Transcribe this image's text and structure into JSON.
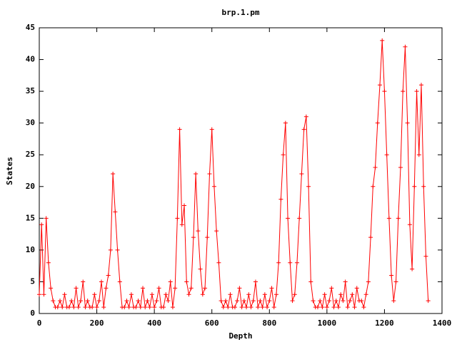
{
  "chart_data": {
    "type": "line",
    "title": "brp.1.pm",
    "x_label": "Depth",
    "y_label": "States",
    "x": [
      0,
      8,
      16,
      24,
      32,
      40,
      48,
      56,
      64,
      72,
      80,
      88,
      96,
      104,
      112,
      120,
      128,
      136,
      144,
      152,
      160,
      168,
      176,
      184,
      192,
      200,
      208,
      216,
      224,
      232,
      240,
      248,
      256,
      264,
      272,
      280,
      288,
      296,
      304,
      312,
      320,
      328,
      336,
      344,
      352,
      360,
      368,
      376,
      384,
      392,
      400,
      408,
      416,
      424,
      432,
      440,
      448,
      456,
      464,
      472,
      480,
      488,
      496,
      504,
      512,
      520,
      528,
      536,
      544,
      552,
      560,
      568,
      576,
      584,
      592,
      600,
      608,
      616,
      624,
      632,
      640,
      648,
      656,
      664,
      672,
      680,
      688,
      696,
      704,
      712,
      720,
      728,
      736,
      744,
      752,
      760,
      768,
      776,
      784,
      792,
      800,
      808,
      816,
      824,
      832,
      840,
      848,
      856,
      864,
      872,
      880,
      888,
      896,
      904,
      912,
      920,
      928,
      936,
      944,
      952,
      960,
      968,
      976,
      984,
      992,
      1000,
      1008,
      1016,
      1024,
      1032,
      1040,
      1048,
      1056,
      1064,
      1072,
      1080,
      1088,
      1096,
      1104,
      1112,
      1120,
      1128,
      1136,
      1144,
      1152,
      1160,
      1168,
      1176,
      1184,
      1192,
      1200,
      1208,
      1216,
      1224,
      1232,
      1240,
      1248,
      1256,
      1264,
      1272,
      1280,
      1288,
      1296,
      1304,
      1312,
      1320,
      1328,
      1336,
      1344,
      1352
    ],
    "values": [
      3,
      14,
      3,
      15,
      8,
      4,
      2,
      1,
      1,
      2,
      1,
      3,
      1,
      1,
      2,
      1,
      4,
      1,
      2,
      5,
      1,
      2,
      1,
      1,
      3,
      1,
      2,
      5,
      1,
      4,
      6,
      10,
      22,
      16,
      10,
      5,
      1,
      1,
      2,
      1,
      3,
      1,
      1,
      2,
      1,
      4,
      1,
      2,
      1,
      3,
      1,
      2,
      4,
      1,
      1,
      3,
      2,
      5,
      1,
      4,
      15,
      29,
      14,
      17,
      5,
      3,
      4,
      12,
      22,
      13,
      7,
      3,
      4,
      12,
      22,
      29,
      20,
      13,
      8,
      2,
      1,
      2,
      1,
      3,
      1,
      1,
      2,
      4,
      1,
      2,
      1,
      3,
      1,
      2,
      5,
      1,
      2,
      1,
      3,
      1,
      2,
      4,
      1,
      3,
      8,
      18,
      25,
      30,
      15,
      8,
      2,
      3,
      8,
      15,
      22,
      29,
      31,
      20,
      5,
      2,
      1,
      1,
      2,
      1,
      3,
      1,
      2,
      4,
      1,
      2,
      1,
      3,
      2,
      5,
      1,
      2,
      3,
      1,
      4,
      2,
      2,
      1,
      3,
      5,
      12,
      20,
      23,
      30,
      36,
      43,
      35,
      25,
      15,
      6,
      2,
      5,
      15,
      23,
      35,
      42,
      30,
      14,
      7,
      20,
      35,
      25,
      36,
      20,
      9,
      2
    ],
    "color": "#ff0000",
    "xlim": [
      0,
      1400
    ],
    "xticks": [
      0,
      200,
      400,
      600,
      800,
      1000,
      1200,
      1400
    ],
    "ylim": [
      0,
      45
    ],
    "yticks": [
      0,
      5,
      10,
      15,
      20,
      25,
      30,
      35,
      40,
      45
    ]
  }
}
